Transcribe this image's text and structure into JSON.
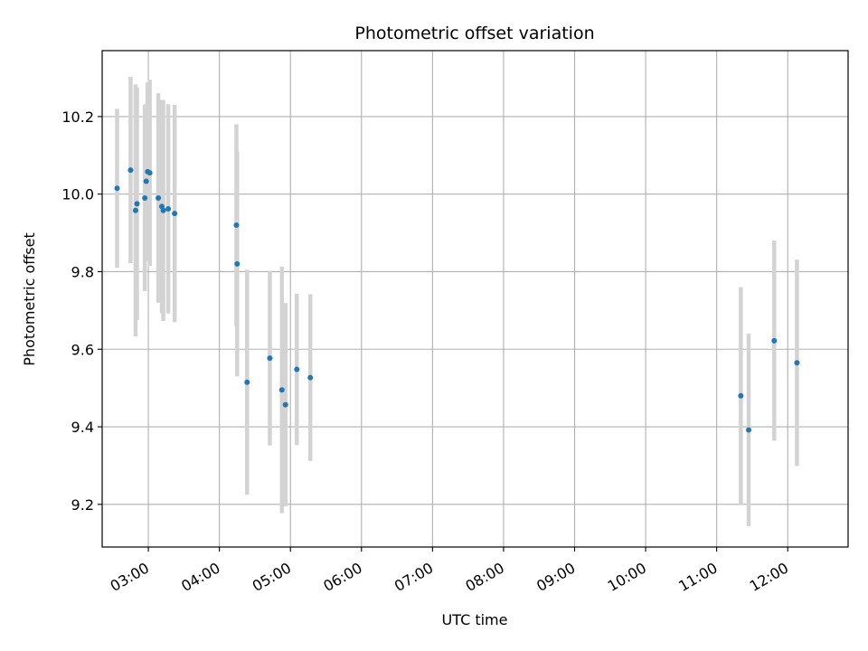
{
  "chart_data": {
    "type": "scatter",
    "title": "Photometric offset variation",
    "xlabel": "UTC time",
    "ylabel": "Photometric offset",
    "x_unit": "hours UTC",
    "xlim": [
      2.35,
      12.85
    ],
    "ylim": [
      9.09,
      10.37
    ],
    "x_ticks": [
      {
        "value": 3,
        "label": "03:00"
      },
      {
        "value": 4,
        "label": "04:00"
      },
      {
        "value": 5,
        "label": "05:00"
      },
      {
        "value": 6,
        "label": "06:00"
      },
      {
        "value": 7,
        "label": "07:00"
      },
      {
        "value": 8,
        "label": "08:00"
      },
      {
        "value": 9,
        "label": "09:00"
      },
      {
        "value": 10,
        "label": "10:00"
      },
      {
        "value": 11,
        "label": "11:00"
      },
      {
        "value": 12,
        "label": "12:00"
      }
    ],
    "y_ticks": [
      {
        "value": 9.2,
        "label": "9.2"
      },
      {
        "value": 9.4,
        "label": "9.4"
      },
      {
        "value": 9.6,
        "label": "9.6"
      },
      {
        "value": 9.8,
        "label": "9.8"
      },
      {
        "value": 10.0,
        "label": "10.0"
      },
      {
        "value": 10.2,
        "label": "10.2"
      }
    ],
    "grid": true,
    "marker_color": "#1f77b4",
    "errorbar_color": "#d3d3d3",
    "points": [
      {
        "x": 2.56,
        "y": 10.015,
        "err": 0.205
      },
      {
        "x": 2.75,
        "y": 10.062,
        "err": 0.24
      },
      {
        "x": 2.82,
        "y": 9.958,
        "err": 0.325
      },
      {
        "x": 2.84,
        "y": 9.975,
        "err": 0.3
      },
      {
        "x": 2.95,
        "y": 9.99,
        "err": 0.24
      },
      {
        "x": 2.97,
        "y": 10.033,
        "err": 0.2
      },
      {
        "x": 2.99,
        "y": 10.058,
        "err": 0.23
      },
      {
        "x": 3.02,
        "y": 10.055,
        "err": 0.24
      },
      {
        "x": 3.14,
        "y": 9.99,
        "err": 0.27
      },
      {
        "x": 3.19,
        "y": 9.968,
        "err": 0.275
      },
      {
        "x": 3.21,
        "y": 9.958,
        "err": 0.285
      },
      {
        "x": 3.28,
        "y": 9.962,
        "err": 0.27
      },
      {
        "x": 3.37,
        "y": 9.95,
        "err": 0.28
      },
      {
        "x": 4.24,
        "y": 9.92,
        "err": 0.26
      },
      {
        "x": 4.25,
        "y": 9.82,
        "err": 0.29
      },
      {
        "x": 4.39,
        "y": 9.515,
        "err": 0.29
      },
      {
        "x": 4.71,
        "y": 9.577,
        "err": 0.225
      },
      {
        "x": 4.88,
        "y": 9.495,
        "err": 0.318
      },
      {
        "x": 4.93,
        "y": 9.457,
        "err": 0.262
      },
      {
        "x": 5.09,
        "y": 9.548,
        "err": 0.195
      },
      {
        "x": 5.28,
        "y": 9.527,
        "err": 0.215
      },
      {
        "x": 11.34,
        "y": 9.48,
        "err": 0.28
      },
      {
        "x": 11.45,
        "y": 9.392,
        "err": 0.248
      },
      {
        "x": 11.81,
        "y": 9.622,
        "err": 0.258
      },
      {
        "x": 12.13,
        "y": 9.565,
        "err": 0.266
      }
    ]
  }
}
